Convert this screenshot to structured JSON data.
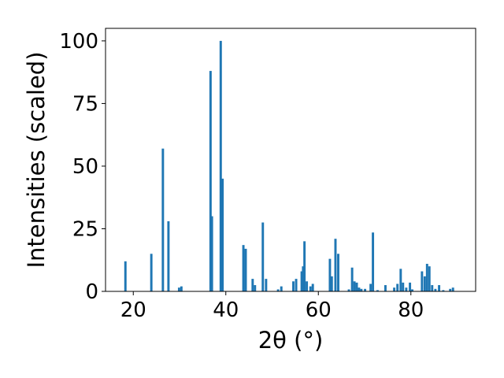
{
  "chart_data": {
    "type": "bar",
    "xlabel": "2θ (°)",
    "ylabel": "Intensities (scaled)",
    "xlim": [
      14,
      94
    ],
    "ylim": [
      0,
      105
    ],
    "xticks": [
      20,
      40,
      60,
      80
    ],
    "yticks": [
      0,
      25,
      50,
      75,
      100
    ],
    "bar_color": "#1f77b4",
    "bar_width": 0.5,
    "grid": false,
    "legend": "none",
    "series": [
      {
        "x": [
          18.3,
          23.9,
          26.4,
          27.6,
          29.9,
          30.4,
          36.7,
          37.0,
          38.9,
          39.3,
          43.8,
          44.3,
          45.8,
          46.3,
          48.0,
          48.7,
          51.3,
          52.0,
          54.6,
          55.2,
          56.4,
          56.7,
          57.0,
          57.5,
          58.3,
          58.8,
          62.5,
          62.9,
          63.7,
          64.3,
          66.6,
          67.3,
          67.8,
          68.3,
          68.8,
          69.3,
          70.1,
          71.3,
          71.8,
          72.8,
          74.5,
          76.4,
          77.1,
          77.8,
          78.3,
          79.0,
          79.8,
          80.3,
          82.4,
          83.0,
          83.5,
          84.0,
          84.6,
          85.3,
          86.1,
          87.0,
          88.5,
          89.1
        ],
        "y": [
          12,
          15,
          57,
          28,
          1.5,
          2,
          88,
          30,
          100,
          45,
          18.5,
          17,
          5,
          2.5,
          27.5,
          5,
          0.8,
          2,
          4,
          5,
          8,
          10,
          20,
          4,
          2,
          3,
          13,
          6,
          21,
          15,
          0.8,
          9.5,
          4,
          3.5,
          1.5,
          1,
          1,
          3,
          23.5,
          0.5,
          2.5,
          1.5,
          3,
          9,
          3.5,
          1.5,
          3.5,
          0.8,
          8,
          6,
          11,
          10,
          2.5,
          1,
          2.5,
          0.5,
          1,
          1.5
        ]
      }
    ]
  }
}
